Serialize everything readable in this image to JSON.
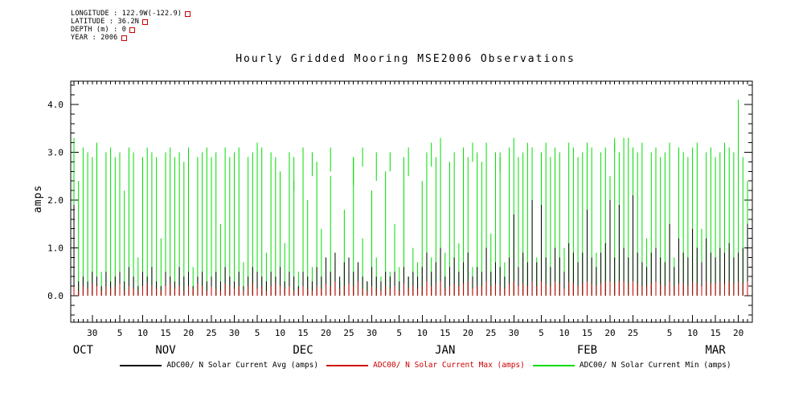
{
  "meta": {
    "longitude": "LONGITUDE : 122.9W(-122.9)",
    "latitude": "LATITUDE : 36.2N",
    "depth": "DEPTH (m) : 0",
    "year": "YEAR : 2006",
    "marker_color": "#cc0000"
  },
  "title": "Hourly Gridded Mooring MSE2006 Observations",
  "y_axis_label": "amps",
  "legend": {
    "items": [
      {
        "label": "ADC00/ N Solar Current Avg (amps)",
        "color": "#000000",
        "text_color": "#000000"
      },
      {
        "label": "ADC00/ N Solar Current Max (amps)",
        "color": "#cc0000",
        "text_color": "#cc0000"
      },
      {
        "label": "ADC00/ N Solar Current Min (amps)",
        "color": "#00dd00",
        "text_color": "#000000"
      }
    ]
  },
  "chart_data": {
    "type": "line",
    "title": "Hourly Gridded Mooring MSE2006 Observations",
    "xlabel": "",
    "ylabel": "amps",
    "ylim": [
      -0.5,
      4.5
    ],
    "y_ticks": [
      0,
      1,
      2,
      3,
      4
    ],
    "y_tick_labels": [
      "0.0",
      "1.0",
      "2.0",
      "3.0",
      "4.0"
    ],
    "n_days": 148,
    "x_ticks": [
      {
        "day": 4,
        "label": "30"
      },
      {
        "day": 10,
        "label": "5"
      },
      {
        "day": 15,
        "label": "10"
      },
      {
        "day": 20,
        "label": "15"
      },
      {
        "day": 25,
        "label": "20"
      },
      {
        "day": 30,
        "label": "25"
      },
      {
        "day": 35,
        "label": "30"
      },
      {
        "day": 40,
        "label": "5"
      },
      {
        "day": 45,
        "label": "10"
      },
      {
        "day": 50,
        "label": "15"
      },
      {
        "day": 55,
        "label": "20"
      },
      {
        "day": 60,
        "label": "25"
      },
      {
        "day": 65,
        "label": "30"
      },
      {
        "day": 71,
        "label": "5"
      },
      {
        "day": 76,
        "label": "10"
      },
      {
        "day": 81,
        "label": "15"
      },
      {
        "day": 86,
        "label": "20"
      },
      {
        "day": 91,
        "label": "25"
      },
      {
        "day": 96,
        "label": "30"
      },
      {
        "day": 102,
        "label": "5"
      },
      {
        "day": 107,
        "label": "10"
      },
      {
        "day": 112,
        "label": "15"
      },
      {
        "day": 117,
        "label": "20"
      },
      {
        "day": 122,
        "label": "25"
      },
      {
        "day": 130,
        "label": "5"
      },
      {
        "day": 135,
        "label": "10"
      },
      {
        "day": 140,
        "label": "15"
      },
      {
        "day": 145,
        "label": "20"
      }
    ],
    "month_labels": [
      {
        "day": 2,
        "label": "OCT"
      },
      {
        "day": 20,
        "label": "NOV"
      },
      {
        "day": 50,
        "label": "DEC"
      },
      {
        "day": 81,
        "label": "JAN"
      },
      {
        "day": 112,
        "label": "FEB"
      },
      {
        "day": 140,
        "label": "MAR"
      }
    ],
    "series": [
      {
        "name": "ADC00/ N Solar Current Min (amps)",
        "color": "#00dd00",
        "daily_peaks": [
          3.3,
          2.4,
          3.1,
          3.0,
          2.9,
          3.2,
          0.5,
          3.0,
          3.1,
          2.9,
          3.0,
          2.2,
          3.1,
          3.0,
          0.8,
          2.9,
          3.1,
          3.0,
          2.9,
          1.2,
          3.0,
          3.1,
          2.9,
          3.0,
          2.8,
          3.1,
          0.6,
          2.9,
          3.0,
          3.1,
          2.9,
          3.0,
          1.5,
          3.1,
          2.9,
          3.0,
          3.1,
          0.7,
          2.9,
          3.0,
          3.2,
          3.1,
          0.9,
          3.0,
          2.9,
          2.6,
          1.1,
          3.0,
          2.4,
          0.5,
          3.1,
          2.0,
          0.6,
          2.8,
          1.4,
          0.4,
          2.5,
          0.7,
          0.3,
          1.8,
          0.5,
          2.9,
          0.6,
          1.2,
          0.3,
          2.2,
          0.8,
          0.4,
          2.6,
          0.5,
          1.5,
          0.6,
          2.9,
          0.4,
          1.0,
          0.7,
          2.4,
          3.0,
          0.8,
          2.9,
          3.3,
          0.9,
          2.8,
          3.0,
          1.1,
          3.1,
          2.9,
          0.6,
          3.0,
          2.8,
          3.2,
          1.3,
          3.0,
          2.9,
          0.7,
          3.1,
          3.3,
          2.9,
          3.0,
          3.2,
          3.1,
          0.8,
          3.0,
          3.2,
          2.9,
          3.1,
          3.0,
          1.0,
          3.2,
          3.1,
          2.9,
          3.0,
          3.2,
          3.1,
          0.9,
          3.0,
          3.1,
          2.5,
          3.2,
          3.0,
          3.3,
          2.9,
          3.1,
          3.0,
          3.2,
          1.2,
          3.0,
          3.1,
          2.9,
          3.0,
          3.2,
          0.8,
          3.1,
          3.0,
          2.9,
          3.1,
          3.2,
          1.4,
          3.0,
          3.1,
          2.9,
          3.0,
          3.2,
          3.1,
          3.0,
          4.1,
          2.9,
          2.4
        ],
        "floating_segments": [
          {
            "day": 48,
            "from": 2.2,
            "to": 2.9
          },
          {
            "day": 52,
            "from": 2.5,
            "to": 3.0
          },
          {
            "day": 56,
            "from": 2.6,
            "to": 3.1
          },
          {
            "day": 61,
            "from": 2.3,
            "to": 2.9
          },
          {
            "day": 63,
            "from": 2.7,
            "to": 3.1
          },
          {
            "day": 66,
            "from": 2.4,
            "to": 3.0
          },
          {
            "day": 69,
            "from": 2.6,
            "to": 3.0
          },
          {
            "day": 73,
            "from": 2.5,
            "to": 3.1
          },
          {
            "day": 78,
            "from": 2.7,
            "to": 3.2
          },
          {
            "day": 87,
            "from": 2.8,
            "to": 3.2
          },
          {
            "day": 93,
            "from": 2.6,
            "to": 3.0
          },
          {
            "day": 118,
            "from": 3.0,
            "to": 3.3
          },
          {
            "day": 121,
            "from": 2.9,
            "to": 3.3
          }
        ]
      },
      {
        "name": "ADC00/ N Solar Current Avg (amps)",
        "color": "#000000",
        "daily_peaks": [
          1.9,
          0.3,
          0.4,
          0.3,
          0.5,
          0.4,
          0.2,
          0.5,
          0.3,
          0.4,
          0.5,
          0.3,
          0.6,
          0.4,
          0.2,
          0.5,
          0.4,
          0.6,
          0.3,
          0.2,
          0.5,
          0.4,
          0.3,
          0.6,
          0.4,
          0.5,
          0.2,
          0.4,
          0.5,
          0.3,
          0.4,
          0.5,
          0.3,
          0.6,
          0.4,
          0.3,
          0.5,
          0.2,
          0.4,
          0.6,
          0.5,
          0.4,
          0.3,
          0.5,
          0.4,
          0.6,
          0.3,
          0.5,
          0.4,
          0.2,
          0.5,
          0.4,
          0.3,
          0.6,
          0.4,
          0.8,
          0.5,
          0.9,
          0.4,
          0.7,
          0.8,
          0.5,
          0.7,
          0.4,
          0.3,
          0.6,
          0.4,
          0.3,
          0.5,
          0.4,
          0.5,
          0.3,
          0.6,
          0.4,
          0.5,
          0.4,
          0.6,
          0.9,
          0.5,
          0.7,
          1.0,
          0.4,
          0.6,
          0.8,
          0.5,
          0.7,
          0.9,
          0.4,
          0.6,
          0.5,
          1.0,
          0.5,
          0.7,
          0.6,
          0.4,
          0.8,
          1.7,
          0.6,
          0.9,
          0.7,
          2.0,
          0.7,
          1.9,
          0.8,
          0.6,
          1.0,
          0.8,
          0.5,
          1.1,
          0.9,
          0.7,
          0.9,
          1.8,
          0.8,
          0.6,
          0.9,
          1.1,
          2.0,
          0.8,
          1.9,
          1.0,
          0.8,
          2.1,
          0.9,
          0.7,
          0.6,
          0.9,
          1.0,
          0.8,
          0.7,
          1.5,
          0.6,
          1.2,
          0.9,
          0.8,
          1.4,
          1.0,
          0.7,
          1.2,
          0.9,
          0.8,
          1.0,
          0.9,
          1.1,
          0.8,
          0.9,
          1.0,
          1.5
        ]
      },
      {
        "name": "ADC00/ N Solar Current Max (amps)",
        "color": "#cc0000",
        "daily_peaks": [
          0.2,
          0.1,
          0.2,
          0.15,
          0.25,
          0.2,
          0.1,
          0.2,
          0.15,
          0.2,
          0.25,
          0.1,
          0.2,
          0.15,
          0.1,
          0.2,
          0.25,
          0.2,
          0.15,
          0.1,
          0.2,
          0.25,
          0.15,
          0.2,
          0.1,
          0.2,
          0.15,
          0.25,
          0.2,
          0.1,
          0.2,
          0.15,
          0.1,
          0.25,
          0.2,
          0.15,
          0.2,
          0.1,
          0.2,
          0.25,
          0.15,
          0.2,
          0.1,
          0.2,
          0.25,
          0.2,
          0.15,
          0.2,
          0.1,
          0.15,
          0.2,
          0.15,
          0.1,
          0.2,
          0.15,
          0.25,
          0.2,
          0.3,
          0.15,
          0.2,
          0.25,
          0.2,
          0.3,
          0.15,
          0.1,
          0.2,
          0.15,
          0.1,
          0.2,
          0.15,
          0.2,
          0.1,
          0.25,
          0.15,
          0.2,
          0.15,
          0.2,
          0.3,
          0.2,
          0.25,
          0.3,
          0.15,
          0.2,
          0.25,
          0.2,
          0.25,
          0.3,
          0.15,
          0.2,
          0.2,
          0.3,
          0.2,
          0.25,
          0.2,
          0.15,
          0.25,
          0.3,
          0.2,
          0.25,
          0.2,
          0.3,
          0.2,
          0.3,
          0.25,
          0.2,
          0.3,
          0.25,
          0.15,
          0.3,
          0.25,
          0.2,
          0.25,
          0.3,
          0.25,
          0.2,
          0.25,
          0.3,
          0.3,
          0.25,
          0.3,
          0.3,
          0.25,
          0.3,
          0.25,
          0.2,
          0.2,
          0.25,
          0.3,
          0.25,
          0.2,
          0.3,
          0.2,
          0.25,
          0.25,
          0.2,
          0.3,
          0.25,
          0.2,
          0.3,
          0.25,
          0.25,
          0.3,
          0.25,
          0.3,
          0.25,
          0.3,
          0.25,
          0.3
        ]
      }
    ]
  }
}
